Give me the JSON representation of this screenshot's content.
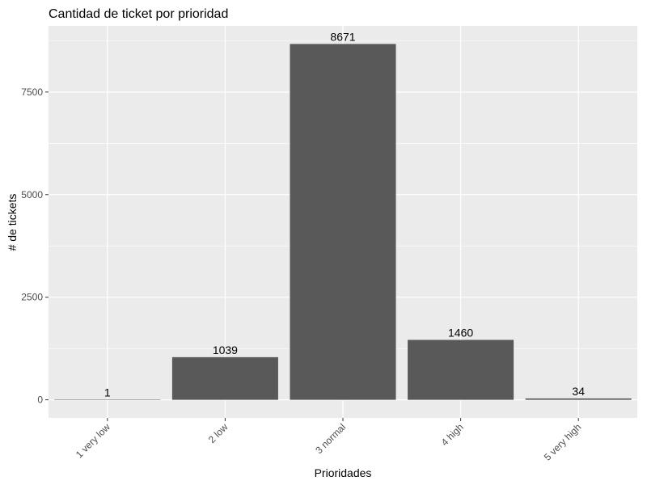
{
  "chart_data": {
    "type": "bar",
    "title": "Cantidad de ticket por prioridad",
    "xlabel": "Prioridades",
    "ylabel": "# de tickets",
    "categories": [
      "1 very low",
      "2 low",
      "3 normal",
      "4 high",
      "5 very high"
    ],
    "values": [
      1,
      1039,
      8671,
      1460,
      34
    ],
    "data_labels": [
      "1",
      "1039",
      "8671",
      "1460",
      "34"
    ],
    "ylim": [
      -441,
      9112
    ],
    "yticks": [
      0,
      2500,
      5000,
      7500
    ],
    "ytick_labels": [
      "0",
      "2500",
      "5000",
      "7500"
    ],
    "grid": true,
    "legend": "none",
    "colors": {
      "bar": "#595959",
      "panel_background": "#ebebeb",
      "grid": "#ffffff",
      "tick_text": "#4d4d4d"
    }
  }
}
